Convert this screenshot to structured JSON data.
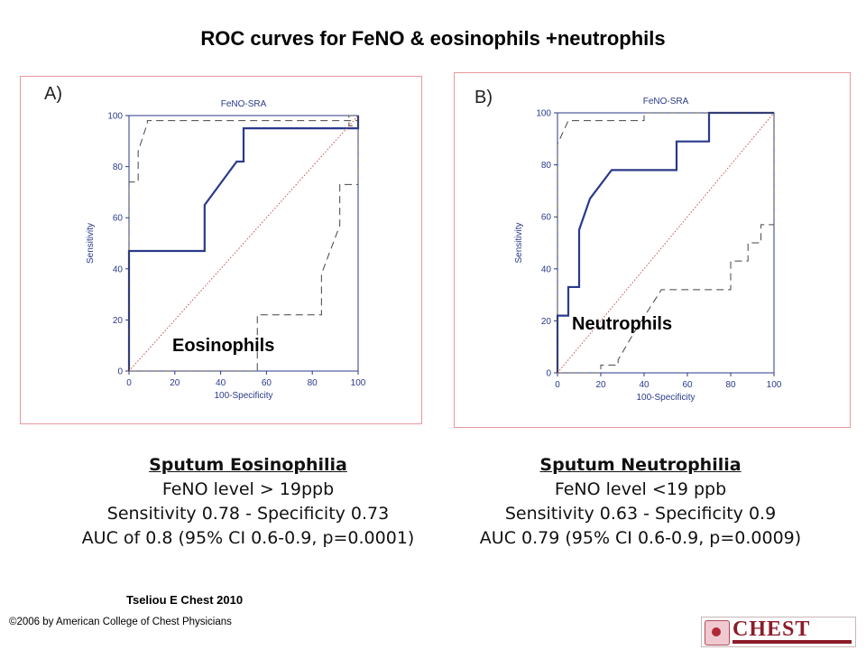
{
  "slide": {
    "title": "ROC curves for FeNO  & eosinophils +neutrophils",
    "citation": "Tseliou E Chest 2010",
    "copyright": "©2006 by American College of Chest Physicians",
    "logo_text": "CHEST"
  },
  "colors": {
    "curve": "#2a3a8a",
    "axis": "#2a3a8a",
    "confidence_band": "#444444",
    "diagonal": "#c04040",
    "panel_border": "#e8999c"
  },
  "chart_data": [
    {
      "type": "line",
      "panel_label": "A)",
      "title": "FeNO-SRA",
      "xlabel": "100-Specificity",
      "ylabel": "Sensitivity",
      "annotation": "Eosinophils",
      "xlim": [
        0,
        100
      ],
      "ylim": [
        0,
        100
      ],
      "xticks": [
        "0",
        "20",
        "40",
        "60",
        "80",
        "100"
      ],
      "yticks": [
        "0",
        "20",
        "40",
        "60",
        "80",
        "100"
      ],
      "series": [
        {
          "style": "roc",
          "x": [
            0,
            0,
            33,
            33,
            47,
            50,
            50,
            100,
            100
          ],
          "y": [
            0,
            47,
            47,
            65,
            82,
            82,
            95,
            95,
            100
          ]
        },
        {
          "style": "ci-upper",
          "x": [
            0,
            0,
            4,
            4,
            8,
            8,
            100,
            100,
            96,
            96,
            100
          ],
          "y": [
            0,
            74,
            74,
            86,
            97,
            98,
            98,
            100,
            100,
            96,
            96
          ]
        },
        {
          "style": "ci-lower",
          "x": [
            0,
            56,
            56,
            84,
            84,
            92,
            92,
            100,
            100
          ],
          "y": [
            0,
            0,
            22,
            22,
            38,
            57,
            73,
            73,
            100
          ]
        },
        {
          "style": "reference",
          "x": [
            0,
            100
          ],
          "y": [
            0,
            100
          ]
        }
      ]
    },
    {
      "type": "line",
      "panel_label": "B)",
      "title": "FeNO-SRA",
      "xlabel": "100-Specificity",
      "ylabel": "Sensitivity",
      "annotation": "Neutrophils",
      "xlim": [
        0,
        100
      ],
      "ylim": [
        0,
        100
      ],
      "xticks": [
        "0",
        "20",
        "40",
        "60",
        "80",
        "100"
      ],
      "yticks": [
        "0",
        "20",
        "40",
        "60",
        "80",
        "100"
      ],
      "series": [
        {
          "style": "roc",
          "x": [
            0,
            0,
            5,
            5,
            10,
            10,
            15,
            25,
            55,
            55,
            70,
            70,
            100,
            100
          ],
          "y": [
            0,
            22,
            22,
            33,
            33,
            55,
            67,
            78,
            78,
            89,
            89,
            100,
            100,
            100
          ]
        },
        {
          "style": "ci-upper",
          "x": [
            0,
            0,
            5,
            40,
            40,
            100,
            100
          ],
          "y": [
            0,
            88,
            97,
            97,
            100,
            100,
            100
          ]
        },
        {
          "style": "ci-lower",
          "x": [
            0,
            20,
            20,
            28,
            28,
            35,
            48,
            80,
            80,
            88,
            88,
            94,
            94,
            100,
            100
          ],
          "y": [
            0,
            0,
            3,
            3,
            5,
            15,
            32,
            32,
            43,
            43,
            50,
            50,
            57,
            57,
            100
          ]
        },
        {
          "style": "reference",
          "x": [
            0,
            100
          ],
          "y": [
            0,
            100
          ]
        }
      ]
    }
  ],
  "stats": [
    {
      "heading": "Sputum Eosinophilia",
      "line1": "FeNO level > 19ppb",
      "line2": "Sensitivity 0.78 - Specificity 0.73",
      "line3": "AUC of 0.8 (95% CI 0.6-0.9, p=0.0001)"
    },
    {
      "heading": "Sputum Neutrophilia",
      "line1": "FeNO level <19 ppb",
      "line2": "Sensitivity 0.63 - Specificity 0.9",
      "line3": "AUC 0.79 (95% CI 0.6-0.9, p=0.0009)"
    }
  ]
}
